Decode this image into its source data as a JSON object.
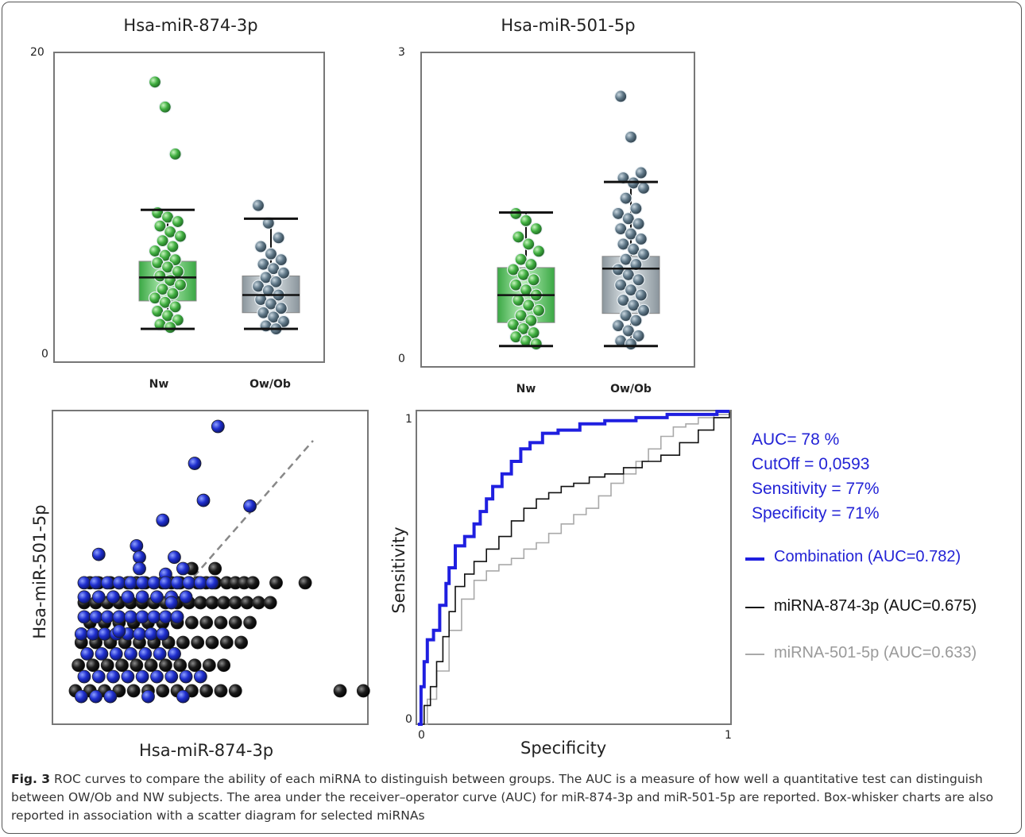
{
  "chart_data": [
    {
      "type": "box",
      "title": "Hsa-miR-874-3p",
      "ylim": [
        0,
        20
      ],
      "yticks": [
        "20",
        "0"
      ],
      "categories": [
        "Nw",
        "Ow/Ob"
      ],
      "boxes": [
        {
          "category": "Nw",
          "whisker_low": 1.4,
          "q1": 3.3,
          "median": 4.9,
          "q3": 6.0,
          "whisker_high": 9.5,
          "color": "#52c05a"
        },
        {
          "category": "Ow/Ob",
          "whisker_low": 1.4,
          "q1": 2.5,
          "median": 3.7,
          "q3": 5.0,
          "whisker_high": 8.9,
          "color": "#a6b0b6"
        }
      ],
      "points": {
        "Nw": [
          18.2,
          16.5,
          13.3,
          9.3,
          9.0,
          8.7,
          8.4,
          8.0,
          7.7,
          7.4,
          7.0,
          6.7,
          6.4,
          6.1,
          5.9,
          5.6,
          5.3,
          5.0,
          4.7,
          4.4,
          4.1,
          3.8,
          3.5,
          3.2,
          2.9,
          2.6,
          2.3,
          2.0,
          1.7,
          1.5
        ],
        "Ow/Ob": [
          9.8,
          8.6,
          7.6,
          7.0,
          6.5,
          6.1,
          5.8,
          5.5,
          5.2,
          4.9,
          4.6,
          4.3,
          4.0,
          3.7,
          3.4,
          3.1,
          2.8,
          2.5,
          2.2,
          1.9,
          1.6,
          1.4
        ]
      }
    },
    {
      "type": "box",
      "title": "Hsa-miR-501-5p",
      "ylim": [
        0,
        3
      ],
      "yticks": [
        "3",
        "0"
      ],
      "categories": [
        "Nw",
        "Ow/Ob"
      ],
      "boxes": [
        {
          "category": "Nw",
          "whisker_low": 0.15,
          "q1": 0.38,
          "median": 0.65,
          "q3": 0.92,
          "whisker_high": 1.46,
          "color": "#52c05a"
        },
        {
          "category": "Ow/Ob",
          "whisker_low": 0.15,
          "q1": 0.47,
          "median": 0.91,
          "q3": 1.03,
          "whisker_high": 1.76,
          "color": "#a6b0b6"
        }
      ],
      "points": {
        "Nw": [
          1.45,
          1.38,
          1.3,
          1.22,
          1.15,
          1.08,
          1.0,
          0.95,
          0.9,
          0.85,
          0.8,
          0.75,
          0.7,
          0.65,
          0.6,
          0.55,
          0.5,
          0.45,
          0.4,
          0.36,
          0.32,
          0.28,
          0.24,
          0.2,
          0.17
        ],
        "Ow/Ob": [
          2.6,
          2.2,
          1.85,
          1.8,
          1.75,
          1.7,
          1.6,
          1.5,
          1.45,
          1.4,
          1.35,
          1.3,
          1.25,
          1.2,
          1.15,
          1.1,
          1.05,
          1.0,
          0.95,
          0.9,
          0.85,
          0.8,
          0.75,
          0.7,
          0.65,
          0.6,
          0.55,
          0.5,
          0.45,
          0.4,
          0.35,
          0.3,
          0.25,
          0.2,
          0.17
        ]
      }
    },
    {
      "type": "scatter",
      "xlabel": "Hsa-miR-874-3p",
      "ylabel": "Hsa-miR-501-5p",
      "xlim": [
        0,
        1
      ],
      "ylim": [
        0,
        1
      ],
      "series": [
        {
          "color": "#101010",
          "x": [
            0.08,
            0.11,
            0.15,
            0.18,
            0.21,
            0.24,
            0.27,
            0.3,
            0.33,
            0.36,
            0.39,
            0.42,
            0.45,
            0.48,
            0.51,
            0.55,
            0.58,
            0.61,
            0.64,
            0.72,
            0.06,
            0.1,
            0.14,
            0.18,
            0.22,
            0.26,
            0.3,
            0.34,
            0.38,
            0.42,
            0.46,
            0.5,
            0.54,
            0.58,
            0.62,
            0.66,
            0.7,
            0.08,
            0.13,
            0.18,
            0.23,
            0.28,
            0.33,
            0.38,
            0.43,
            0.48,
            0.53,
            0.58,
            0.63,
            0.05,
            0.1,
            0.15,
            0.2,
            0.25,
            0.3,
            0.35,
            0.4,
            0.45,
            0.5,
            0.55,
            0.6,
            0.04,
            0.09,
            0.14,
            0.19,
            0.24,
            0.29,
            0.34,
            0.39,
            0.44,
            0.49,
            0.54,
            0.03,
            0.08,
            0.13,
            0.18,
            0.23,
            0.28,
            0.33,
            0.38,
            0.43,
            0.48,
            0.53,
            0.58,
            0.82,
            0.94,
            1.02,
            0.43,
            0.51,
            0.37
          ],
          "y": [
            0.45,
            0.45,
            0.45,
            0.45,
            0.45,
            0.45,
            0.45,
            0.45,
            0.45,
            0.45,
            0.45,
            0.45,
            0.45,
            0.45,
            0.45,
            0.45,
            0.45,
            0.45,
            0.45,
            0.45,
            0.38,
            0.38,
            0.38,
            0.38,
            0.38,
            0.38,
            0.38,
            0.38,
            0.38,
            0.38,
            0.38,
            0.38,
            0.38,
            0.38,
            0.38,
            0.38,
            0.38,
            0.31,
            0.31,
            0.31,
            0.31,
            0.31,
            0.31,
            0.31,
            0.31,
            0.31,
            0.31,
            0.31,
            0.31,
            0.24,
            0.24,
            0.24,
            0.24,
            0.24,
            0.24,
            0.24,
            0.24,
            0.24,
            0.24,
            0.24,
            0.24,
            0.16,
            0.16,
            0.16,
            0.16,
            0.16,
            0.16,
            0.16,
            0.16,
            0.16,
            0.16,
            0.16,
            0.07,
            0.07,
            0.07,
            0.07,
            0.07,
            0.07,
            0.07,
            0.07,
            0.07,
            0.07,
            0.07,
            0.07,
            0.45,
            0.07,
            0.07,
            0.5,
            0.5,
            0.2
          ]
        },
        {
          "color": "#1f2fcf",
          "x": [
            0.52,
            0.44,
            0.47,
            0.63,
            0.33,
            0.24,
            0.11,
            0.25,
            0.37,
            0.4,
            0.25,
            0.34,
            0.06,
            0.1,
            0.14,
            0.18,
            0.22,
            0.26,
            0.3,
            0.34,
            0.38,
            0.42,
            0.46,
            0.5,
            0.06,
            0.11,
            0.16,
            0.21,
            0.26,
            0.31,
            0.36,
            0.41,
            0.06,
            0.1,
            0.14,
            0.18,
            0.22,
            0.26,
            0.3,
            0.34,
            0.38,
            0.05,
            0.09,
            0.13,
            0.17,
            0.21,
            0.25,
            0.29,
            0.33,
            0.07,
            0.12,
            0.17,
            0.22,
            0.27,
            0.32,
            0.37,
            0.06,
            0.11,
            0.16,
            0.21,
            0.26,
            0.31,
            0.36,
            0.41,
            0.46,
            0.05,
            0.1,
            0.15,
            0.28,
            0.4,
            0.36,
            0.18
          ],
          "y": [
            1.0,
            0.87,
            0.74,
            0.72,
            0.67,
            0.58,
            0.55,
            0.54,
            0.54,
            0.5,
            0.5,
            0.48,
            0.45,
            0.45,
            0.45,
            0.45,
            0.45,
            0.45,
            0.45,
            0.45,
            0.45,
            0.45,
            0.45,
            0.45,
            0.4,
            0.4,
            0.4,
            0.4,
            0.4,
            0.4,
            0.4,
            0.4,
            0.33,
            0.33,
            0.33,
            0.33,
            0.33,
            0.33,
            0.33,
            0.33,
            0.33,
            0.27,
            0.27,
            0.27,
            0.27,
            0.27,
            0.27,
            0.27,
            0.27,
            0.2,
            0.2,
            0.2,
            0.2,
            0.2,
            0.2,
            0.2,
            0.12,
            0.12,
            0.12,
            0.12,
            0.12,
            0.12,
            0.12,
            0.12,
            0.12,
            0.05,
            0.05,
            0.05,
            0.05,
            0.05,
            0.38,
            0.28
          ]
        }
      ],
      "reference_line": {
        "x": [
          0.41,
          1.0
        ],
        "y": [
          0.44,
          0.95
        ],
        "style": "dashed"
      }
    },
    {
      "type": "line",
      "xlabel": "Specificity",
      "ylabel": "Sensitivity",
      "xlim": [
        0,
        1
      ],
      "ylim": [
        0,
        1
      ],
      "xticks": [
        "0",
        "1"
      ],
      "yticks": [
        "1",
        "0"
      ],
      "series": [
        {
          "name": "Combination (AUC=0.782)",
          "color": "#1f1fe0",
          "x": [
            0,
            0.01,
            0.02,
            0.03,
            0.05,
            0.07,
            0.09,
            0.1,
            0.12,
            0.15,
            0.18,
            0.2,
            0.22,
            0.24,
            0.27,
            0.3,
            0.33,
            0.36,
            0.4,
            0.45,
            0.52,
            0.6,
            0.7,
            0.8,
            0.9,
            0.96,
            1.0
          ],
          "y": [
            0,
            0.12,
            0.2,
            0.27,
            0.3,
            0.38,
            0.45,
            0.5,
            0.57,
            0.6,
            0.64,
            0.68,
            0.72,
            0.76,
            0.8,
            0.84,
            0.88,
            0.9,
            0.93,
            0.94,
            0.96,
            0.97,
            0.98,
            0.99,
            0.99,
            1.0,
            1.0
          ]
        },
        {
          "name": "miRNA-874-3p (AUC=0.675)",
          "color": "#111111",
          "x": [
            0,
            0.02,
            0.04,
            0.06,
            0.08,
            0.1,
            0.12,
            0.15,
            0.18,
            0.22,
            0.26,
            0.3,
            0.34,
            0.38,
            0.42,
            0.46,
            0.5,
            0.55,
            0.6,
            0.66,
            0.72,
            0.78,
            0.84,
            0.9,
            0.95,
            1.0
          ],
          "y": [
            0,
            0.06,
            0.12,
            0.2,
            0.28,
            0.36,
            0.44,
            0.48,
            0.52,
            0.56,
            0.6,
            0.65,
            0.69,
            0.72,
            0.74,
            0.76,
            0.77,
            0.79,
            0.8,
            0.82,
            0.84,
            0.86,
            0.9,
            0.94,
            0.98,
            1.0
          ]
        },
        {
          "name": "miRNA-501-5p (AUC=0.633)",
          "color": "#a9a9a9",
          "x": [
            0,
            0.03,
            0.06,
            0.1,
            0.14,
            0.18,
            0.22,
            0.26,
            0.3,
            0.34,
            0.38,
            0.42,
            0.46,
            0.5,
            0.54,
            0.58,
            0.62,
            0.66,
            0.7,
            0.74,
            0.78,
            0.82,
            0.86,
            0.9,
            0.95,
            1.0
          ],
          "y": [
            0,
            0.08,
            0.17,
            0.3,
            0.4,
            0.46,
            0.49,
            0.51,
            0.53,
            0.56,
            0.58,
            0.61,
            0.64,
            0.67,
            0.69,
            0.73,
            0.77,
            0.8,
            0.84,
            0.88,
            0.92,
            0.95,
            0.96,
            0.98,
            0.99,
            1.0
          ]
        }
      ],
      "annotation": [
        "AUC=  78 %",
        "CutOff  = 0,0593",
        "Sensitivity = 77%",
        "Specificity = 71%"
      ],
      "legend_position": "right"
    }
  ],
  "caption": {
    "label": "Fig. 3",
    "text": "ROC curves to compare the ability of each miRNA to distinguish between groups. The AUC is a measure of how well a quantitative test can distinguish between OW/Ob and NW subjects. The area under the receiver–operator curve (AUC) for miR-874-3p and miR-501-5p are reported. Box-whisker charts are also reported in association with a scatter diagram for selected miRNAs"
  }
}
